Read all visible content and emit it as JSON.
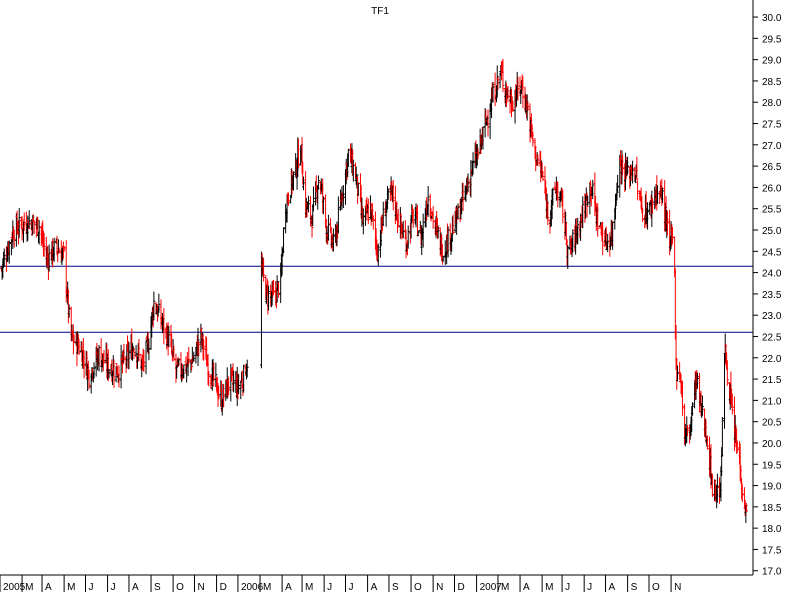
{
  "chart_data": {
    "type": "ohlc",
    "title": "TF1",
    "xlabel": "",
    "ylabel": "",
    "ylim": [
      16.9,
      30.4
    ],
    "y_ticks": [
      "17.0",
      "17.5",
      "18.0",
      "18.5",
      "19.0",
      "19.5",
      "20.0",
      "20.5",
      "21.0",
      "21.5",
      "22.0",
      "22.5",
      "23.0",
      "23.5",
      "24.0",
      "24.5",
      "25.0",
      "25.5",
      "26.0",
      "26.5",
      "27.0",
      "27.5",
      "28.0",
      "28.5",
      "29.0",
      "29.5",
      "30.0"
    ],
    "x_labels": [
      "2005",
      "M",
      "A",
      "M",
      "J",
      "J",
      "A",
      "S",
      "O",
      "N",
      "D",
      "2006",
      "M",
      "A",
      "M",
      "J",
      "J",
      "A",
      "S",
      "O",
      "N",
      "D",
      "2007",
      "M",
      "A",
      "M",
      "J",
      "J",
      "A",
      "S",
      "O",
      "N"
    ],
    "horizontal_lines": [
      24.15,
      22.6
    ],
    "grid": false,
    "up_color": "#000000",
    "down_color": "#ff0000",
    "ref_line_color": "#000080",
    "series": [
      {
        "values": [
          [
            "2005-01-03",
            24.1
          ],
          [
            "2005-01-20",
            25.0
          ],
          [
            "2005-02-10",
            25.2
          ],
          [
            "2005-02-25",
            25.1
          ],
          [
            "2005-03-08",
            24.3
          ],
          [
            "2005-03-20",
            24.6
          ],
          [
            "2005-04-01",
            24.4
          ],
          [
            "2005-04-10",
            22.5
          ],
          [
            "2005-04-25",
            22.2
          ],
          [
            "2005-05-06",
            21.6
          ],
          [
            "2005-05-20",
            22.1
          ],
          [
            "2005-06-01",
            21.8
          ],
          [
            "2005-06-15",
            21.7
          ],
          [
            "2005-06-28",
            22.0
          ],
          [
            "2005-07-08",
            22.3
          ],
          [
            "2005-07-20",
            21.8
          ],
          [
            "2005-07-29",
            22.4
          ],
          [
            "2005-08-05",
            23.3
          ],
          [
            "2005-08-15",
            22.9
          ],
          [
            "2005-08-26",
            22.4
          ],
          [
            "2005-09-05",
            21.7
          ],
          [
            "2005-09-20",
            21.8
          ],
          [
            "2005-09-30",
            22.0
          ],
          [
            "2005-10-10",
            22.5
          ],
          [
            "2005-10-20",
            21.8
          ],
          [
            "2005-10-30",
            21.4
          ],
          [
            "2005-11-08",
            21.0
          ],
          [
            "2005-11-20",
            21.5
          ],
          [
            "2005-11-30",
            21.3
          ],
          [
            "2005-12-08",
            21.5
          ],
          [
            "2005-12-15",
            22.0
          ],
          [
            "2006-01-03",
            24.1
          ],
          [
            "2006-01-10",
            23.5
          ],
          [
            "2006-01-20",
            23.4
          ],
          [
            "2006-01-30",
            23.8
          ],
          [
            "2006-02-05",
            25.5
          ],
          [
            "2006-02-12",
            26.0
          ],
          [
            "2006-02-20",
            26.4
          ],
          [
            "2006-02-27",
            27.0
          ],
          [
            "2006-03-05",
            25.6
          ],
          [
            "2006-03-15",
            25.3
          ],
          [
            "2006-03-25",
            26.3
          ],
          [
            "2006-04-05",
            25.0
          ],
          [
            "2006-04-15",
            24.6
          ],
          [
            "2006-04-25",
            25.7
          ],
          [
            "2006-05-05",
            26.8
          ],
          [
            "2006-05-15",
            26.3
          ],
          [
            "2006-05-25",
            25.2
          ],
          [
            "2006-06-05",
            25.5
          ],
          [
            "2006-06-15",
            24.5
          ],
          [
            "2006-06-25",
            25.5
          ],
          [
            "2006-07-05",
            25.9
          ],
          [
            "2006-07-15",
            25.2
          ],
          [
            "2006-07-25",
            24.7
          ],
          [
            "2006-08-05",
            25.4
          ],
          [
            "2006-08-15",
            24.8
          ],
          [
            "2006-08-25",
            25.8
          ],
          [
            "2006-09-05",
            25.0
          ],
          [
            "2006-09-15",
            24.5
          ],
          [
            "2006-09-25",
            24.9
          ],
          [
            "2006-10-05",
            25.3
          ],
          [
            "2006-10-15",
            25.8
          ],
          [
            "2006-10-25",
            26.4
          ],
          [
            "2006-11-05",
            26.9
          ],
          [
            "2006-11-15",
            27.6
          ],
          [
            "2006-11-25",
            28.2
          ],
          [
            "2006-12-05",
            28.7
          ],
          [
            "2006-12-12",
            28.3
          ],
          [
            "2006-12-20",
            28.0
          ],
          [
            "2007-01-03",
            28.4
          ],
          [
            "2007-01-12",
            27.8
          ],
          [
            "2007-01-22",
            26.8
          ],
          [
            "2007-02-01",
            26.3
          ],
          [
            "2007-02-10",
            25.3
          ],
          [
            "2007-02-20",
            26.0
          ],
          [
            "2007-03-01",
            25.6
          ],
          [
            "2007-03-10",
            24.4
          ],
          [
            "2007-03-20",
            24.9
          ],
          [
            "2007-04-01",
            25.5
          ],
          [
            "2007-04-10",
            26.1
          ],
          [
            "2007-04-20",
            25.2
          ],
          [
            "2007-05-01",
            24.7
          ],
          [
            "2007-05-10",
            24.9
          ],
          [
            "2007-05-20",
            26.6
          ],
          [
            "2007-06-01",
            26.3
          ],
          [
            "2007-06-10",
            26.5
          ],
          [
            "2007-06-20",
            25.5
          ],
          [
            "2007-07-01",
            25.4
          ],
          [
            "2007-07-10",
            25.9
          ],
          [
            "2007-07-20",
            25.8
          ],
          [
            "2007-07-30",
            24.6
          ],
          [
            "2007-08-05",
            24.9
          ],
          [
            "2007-08-08",
            21.8
          ],
          [
            "2007-08-15",
            21.5
          ],
          [
            "2007-08-20",
            20.1
          ],
          [
            "2007-08-28",
            20.4
          ],
          [
            "2007-09-05",
            21.5
          ],
          [
            "2007-09-12",
            20.8
          ],
          [
            "2007-09-20",
            20.2
          ],
          [
            "2007-09-28",
            19.0
          ],
          [
            "2007-10-05",
            18.8
          ],
          [
            "2007-10-10",
            19.1
          ],
          [
            "2007-10-15",
            22.2
          ],
          [
            "2007-10-20",
            21.6
          ],
          [
            "2007-10-28",
            20.3
          ],
          [
            "2007-11-05",
            19.6
          ],
          [
            "2007-11-10",
            18.8
          ],
          [
            "2007-11-16",
            18.2
          ]
        ]
      }
    ]
  }
}
